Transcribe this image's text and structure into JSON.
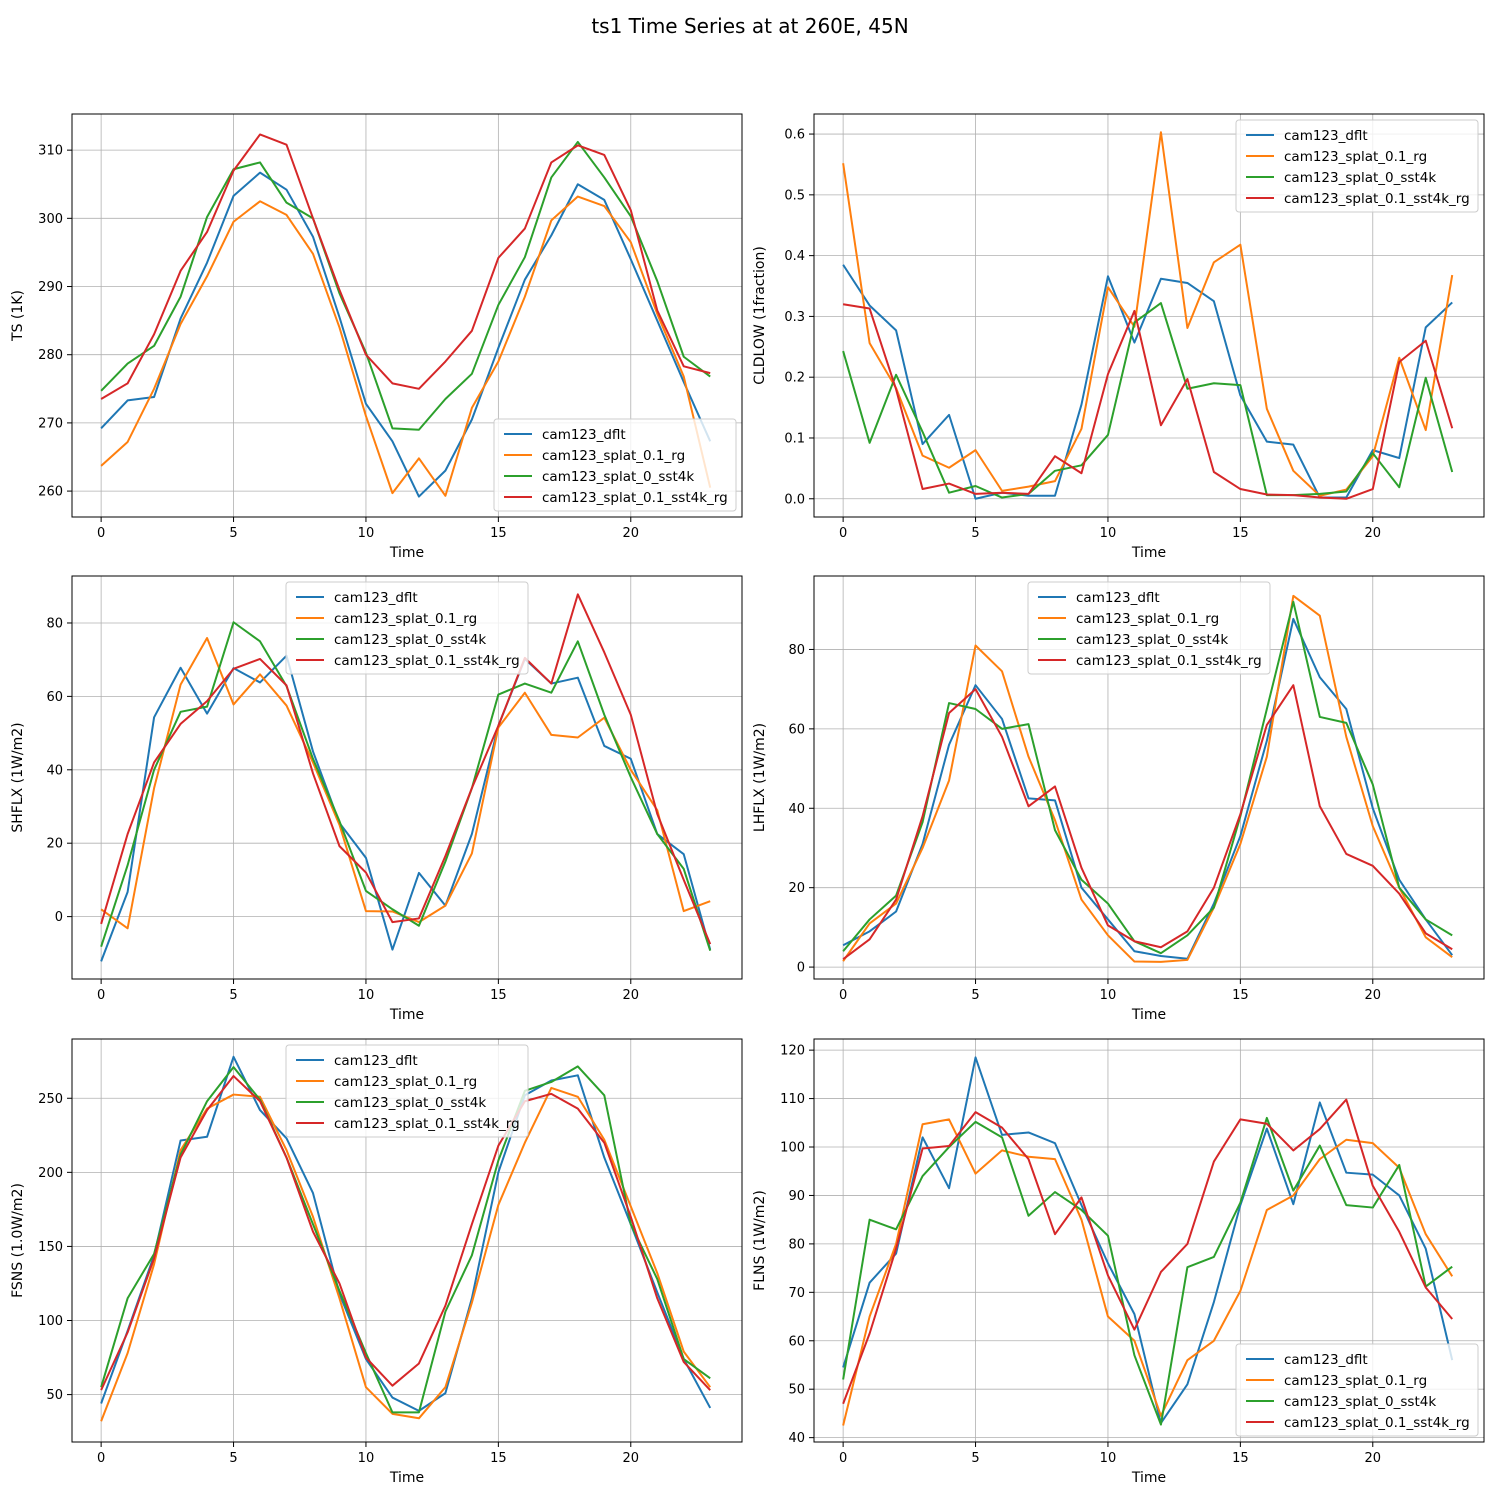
{
  "figure_title": "ts1 Time Series at at 260E, 45N",
  "colors": {
    "cam123_dflt": "#1f77b4",
    "cam123_splat_0.1_rg": "#ff7f0e",
    "cam123_splat_0_sst4k": "#2ca02c",
    "cam123_splat_0.1_sst4k_rg": "#d62728"
  },
  "chart_data": [
    {
      "type": "line",
      "title": "",
      "xlabel": "Time",
      "ylabel": "TS (1K)",
      "xlim": [
        -1.1,
        24.2
      ],
      "ylim": [
        256.2,
        315.3
      ],
      "xticks": [
        0,
        5,
        10,
        15,
        20
      ],
      "yticks": [
        260,
        270,
        280,
        290,
        300,
        310
      ],
      "grid": true,
      "legend_loc": "lower-right",
      "x": [
        0,
        1,
        2,
        3,
        4,
        5,
        6,
        7,
        8,
        9,
        10,
        11,
        12,
        13,
        14,
        15,
        16,
        17,
        18,
        19,
        20,
        21,
        22,
        23
      ],
      "series": [
        {
          "name": "cam123_dflt",
          "values": [
            269.2,
            273.3,
            273.8,
            285.3,
            293.5,
            303.3,
            306.7,
            304.2,
            297.3,
            285.5,
            272.8,
            267.3,
            259.2,
            263.0,
            270.5,
            281.0,
            291.0,
            297.5,
            305.0,
            302.7,
            294.0,
            285.0,
            276.0,
            267.3
          ]
        },
        {
          "name": "cam123_splat_0.1_rg",
          "values": [
            263.7,
            267.2,
            275.0,
            284.5,
            291.5,
            299.5,
            302.5,
            300.5,
            294.8,
            284.0,
            271.0,
            259.7,
            264.8,
            259.3,
            272.2,
            279.0,
            288.5,
            299.7,
            303.2,
            301.8,
            296.5,
            286.0,
            276.8,
            260.5
          ]
        },
        {
          "name": "cam123_splat_0_sst4k",
          "values": [
            274.7,
            278.7,
            281.3,
            288.5,
            300.2,
            307.2,
            308.2,
            302.3,
            300.0,
            289.0,
            280.3,
            269.2,
            269.0,
            273.5,
            277.2,
            287.3,
            294.3,
            306.0,
            311.2,
            306.0,
            300.3,
            290.8,
            279.7,
            276.8
          ]
        },
        {
          "name": "cam123_splat_0.1_sst4k_rg",
          "values": [
            273.5,
            275.8,
            283.0,
            292.3,
            298.0,
            307.0,
            312.3,
            310.8,
            300.0,
            289.5,
            280.0,
            275.8,
            275.0,
            279.0,
            283.5,
            294.2,
            298.5,
            308.2,
            310.7,
            309.3,
            301.2,
            286.5,
            278.3,
            277.3
          ]
        }
      ]
    },
    {
      "type": "line",
      "title": "",
      "xlabel": "Time",
      "ylabel": "CLDLOW (1fraction)",
      "xlim": [
        -1.1,
        24.2
      ],
      "ylim": [
        -0.03,
        0.633
      ],
      "xticks": [
        0,
        5,
        10,
        15,
        20
      ],
      "yticks": [
        0.0,
        0.1,
        0.2,
        0.3,
        0.4,
        0.5,
        0.6
      ],
      "grid": true,
      "legend_loc": "upper-right",
      "x": [
        0,
        1,
        2,
        3,
        4,
        5,
        6,
        7,
        8,
        9,
        10,
        11,
        12,
        13,
        14,
        15,
        16,
        17,
        18,
        19,
        20,
        21,
        22,
        23
      ],
      "series": [
        {
          "name": "cam123_dflt",
          "values": [
            0.385,
            0.318,
            0.277,
            0.09,
            0.138,
            0.0,
            0.01,
            0.005,
            0.005,
            0.155,
            0.366,
            0.257,
            0.362,
            0.355,
            0.325,
            0.17,
            0.094,
            0.089,
            0.002,
            0.002,
            0.08,
            0.067,
            0.282,
            0.323
          ]
        },
        {
          "name": "cam123_splat_0.1_rg",
          "values": [
            0.552,
            0.256,
            0.182,
            0.071,
            0.051,
            0.08,
            0.013,
            0.02,
            0.029,
            0.115,
            0.348,
            0.283,
            0.603,
            0.281,
            0.389,
            0.418,
            0.148,
            0.046,
            0.005,
            0.015,
            0.07,
            0.232,
            0.113,
            0.368
          ]
        },
        {
          "name": "cam123_splat_0_sst4k",
          "values": [
            0.243,
            0.092,
            0.204,
            0.11,
            0.01,
            0.021,
            0.002,
            0.008,
            0.046,
            0.055,
            0.105,
            0.29,
            0.322,
            0.181,
            0.19,
            0.187,
            0.006,
            0.006,
            0.008,
            0.012,
            0.075,
            0.019,
            0.199,
            0.044
          ]
        },
        {
          "name": "cam123_splat_0.1_sst4k_rg",
          "values": [
            0.32,
            0.313,
            0.18,
            0.016,
            0.025,
            0.008,
            0.01,
            0.008,
            0.07,
            0.042,
            0.205,
            0.309,
            0.121,
            0.197,
            0.044,
            0.016,
            0.007,
            0.006,
            0.002,
            0.0,
            0.016,
            0.225,
            0.26,
            0.116
          ]
        }
      ]
    },
    {
      "type": "line",
      "title": "",
      "xlabel": "Time",
      "ylabel": "SHFLX (1W/m2)",
      "xlim": [
        -1.1,
        24.2
      ],
      "ylim": [
        -17,
        92.8
      ],
      "xticks": [
        0,
        5,
        10,
        15,
        20
      ],
      "yticks": [
        0,
        20,
        40,
        60,
        80
      ],
      "grid": true,
      "legend_loc": "upper-center",
      "x": [
        0,
        1,
        2,
        3,
        4,
        5,
        6,
        7,
        8,
        9,
        10,
        11,
        12,
        13,
        14,
        15,
        16,
        17,
        18,
        19,
        20,
        21,
        22,
        23
      ],
      "series": [
        {
          "name": "cam123_dflt",
          "values": [
            -12.2,
            6.7,
            54.3,
            67.8,
            55.3,
            67.7,
            63.8,
            71.1,
            45.0,
            25.5,
            16.0,
            -9.0,
            11.9,
            3.0,
            22.5,
            52.0,
            70.2,
            63.5,
            65.1,
            46.5,
            43.0,
            22.5,
            17.0,
            -9.0
          ]
        },
        {
          "name": "cam123_splat_0.1_rg",
          "values": [
            2.0,
            -3.2,
            35.0,
            63.2,
            75.9,
            57.8,
            66.0,
            57.5,
            42.0,
            25.0,
            1.5,
            1.4,
            -1.5,
            3.0,
            17.2,
            51.5,
            61.0,
            49.5,
            48.8,
            54.2,
            40.0,
            29.0,
            1.5,
            4.2
          ]
        },
        {
          "name": "cam123_splat_0_sst4k",
          "values": [
            -8.2,
            14.0,
            40.0,
            55.8,
            57.2,
            80.2,
            75.0,
            62.8,
            43.0,
            26.0,
            7.0,
            2.0,
            -2.5,
            15.0,
            35.0,
            60.5,
            63.5,
            61.0,
            75.0,
            55.0,
            38.0,
            22.5,
            13.0,
            -9.3
          ]
        },
        {
          "name": "cam123_splat_0.1_sst4k_rg",
          "values": [
            -2.0,
            22.5,
            42.0,
            52.5,
            58.7,
            67.5,
            70.2,
            63.0,
            39.0,
            19.2,
            12.0,
            -1.5,
            -0.5,
            16.5,
            35.0,
            52.0,
            70.5,
            63.5,
            87.8,
            72.0,
            55.0,
            28.0,
            10.0,
            -7.5
          ]
        }
      ]
    },
    {
      "type": "line",
      "title": "",
      "xlabel": "Time",
      "ylabel": "LHFLX (1W/m2)",
      "xlim": [
        -1.1,
        24.2
      ],
      "ylim": [
        -3,
        98.5
      ],
      "xticks": [
        0,
        5,
        10,
        15,
        20
      ],
      "yticks": [
        0,
        20,
        40,
        60,
        80
      ],
      "grid": true,
      "legend_loc": "upper-center",
      "x": [
        0,
        1,
        2,
        3,
        4,
        5,
        6,
        7,
        8,
        9,
        10,
        11,
        12,
        13,
        14,
        15,
        16,
        17,
        18,
        19,
        20,
        21,
        22,
        23
      ],
      "series": [
        {
          "name": "cam123_dflt",
          "values": [
            5.5,
            9.0,
            14.0,
            31.0,
            56.0,
            71.0,
            62.5,
            42.5,
            42.0,
            20.0,
            12.0,
            4.0,
            2.8,
            2.1,
            16.0,
            33.0,
            57.0,
            87.7,
            73.0,
            65.0,
            40.0,
            22.0,
            12.0,
            3.0
          ]
        },
        {
          "name": "cam123_splat_0.1_rg",
          "values": [
            1.5,
            11.0,
            16.0,
            30.0,
            47.0,
            81.0,
            74.5,
            53.0,
            37.0,
            17.0,
            8.0,
            1.4,
            1.3,
            1.8,
            15.0,
            31.0,
            53.0,
            93.5,
            88.5,
            58.0,
            35.5,
            20.0,
            7.5,
            2.5
          ]
        },
        {
          "name": "cam123_splat_0_sst4k",
          "values": [
            4.0,
            12.0,
            18.0,
            36.5,
            66.5,
            65.0,
            60.0,
            61.2,
            34.5,
            22.0,
            16.0,
            6.5,
            3.5,
            8.0,
            15.0,
            38.0,
            65.0,
            92.0,
            63.0,
            61.5,
            46.0,
            20.0,
            12.0,
            8.0
          ]
        },
        {
          "name": "cam123_splat_0.1_sst4k_rg",
          "values": [
            2.0,
            7.0,
            17.0,
            38.0,
            64.0,
            70.0,
            58.0,
            40.5,
            45.5,
            25.0,
            10.5,
            6.5,
            5.0,
            9.0,
            20.0,
            38.5,
            61.0,
            71.0,
            40.5,
            28.5,
            25.5,
            18.5,
            8.5,
            4.5
          ]
        }
      ]
    },
    {
      "type": "line",
      "title": "",
      "xlabel": "Time",
      "ylabel": "FSNS (1.0W/m2)",
      "xlim": [
        -1.1,
        24.2
      ],
      "ylim": [
        18,
        290
      ],
      "xticks": [
        0,
        5,
        10,
        15,
        20
      ],
      "yticks": [
        50,
        100,
        150,
        200,
        250
      ],
      "grid": true,
      "legend_loc": "upper-center",
      "x": [
        0,
        1,
        2,
        3,
        4,
        5,
        6,
        7,
        8,
        9,
        10,
        11,
        12,
        13,
        14,
        15,
        16,
        17,
        18,
        19,
        20,
        21,
        22,
        23
      ],
      "series": [
        {
          "name": "cam123_dflt",
          "values": [
            44.0,
            93.0,
            144.0,
            221.5,
            224.0,
            278.0,
            242.0,
            223.0,
            186.0,
            118.0,
            74.0,
            48.0,
            39.0,
            51.0,
            115.0,
            200.0,
            252.0,
            262.0,
            265.5,
            210.0,
            165.0,
            119.0,
            74.0,
            41.0
          ]
        },
        {
          "name": "cam123_splat_0.1_rg",
          "values": [
            32.0,
            78.0,
            138.0,
            215.0,
            243.0,
            252.5,
            251.0,
            215.0,
            170.0,
            115.0,
            55.0,
            37.0,
            34.0,
            55.0,
            112.0,
            178.0,
            220.0,
            257.0,
            251.0,
            222.0,
            177.0,
            132.0,
            79.0,
            55.0
          ]
        },
        {
          "name": "cam123_splat_0_sst4k",
          "values": [
            55.0,
            115.0,
            145.0,
            212.0,
            248.0,
            271.0,
            249.0,
            210.0,
            165.0,
            120.0,
            78.0,
            38.0,
            38.0,
            106.0,
            144.0,
            208.0,
            255.0,
            261.0,
            271.5,
            252.0,
            165.0,
            128.0,
            74.0,
            61.0
          ]
        },
        {
          "name": "cam123_splat_0.1_sst4k_rg",
          "values": [
            53.0,
            92.0,
            142.0,
            210.0,
            242.0,
            265.0,
            248.0,
            210.0,
            160.0,
            125.0,
            75.0,
            56.0,
            71.0,
            110.0,
            165.0,
            218.0,
            248.0,
            253.0,
            243.0,
            220.0,
            170.0,
            115.0,
            72.0,
            53.0
          ]
        }
      ]
    },
    {
      "type": "line",
      "title": "",
      "xlabel": "Time",
      "ylabel": "FLNS (1W/m2)",
      "xlim": [
        -1.1,
        24.2
      ],
      "ylim": [
        39.1,
        122.3
      ],
      "xticks": [
        0,
        5,
        10,
        15,
        20
      ],
      "yticks": [
        40,
        50,
        60,
        70,
        80,
        90,
        100,
        110,
        120
      ],
      "grid": true,
      "legend_loc": "lower-right",
      "x": [
        0,
        1,
        2,
        3,
        4,
        5,
        6,
        7,
        8,
        9,
        10,
        11,
        12,
        13,
        14,
        15,
        16,
        17,
        18,
        19,
        20,
        21,
        22,
        23
      ],
      "series": [
        {
          "name": "cam123_dflt",
          "values": [
            54.5,
            72.0,
            78.0,
            102.0,
            91.5,
            118.5,
            102.5,
            103.0,
            100.8,
            88.0,
            76.0,
            65.5,
            43.0,
            51.0,
            68.0,
            88.0,
            103.8,
            88.2,
            109.2,
            94.7,
            94.3,
            90.0,
            79.0,
            56.0
          ]
        },
        {
          "name": "cam123_splat_0.1_rg",
          "values": [
            42.5,
            65.0,
            80.0,
            104.7,
            105.7,
            94.5,
            99.3,
            98.0,
            97.5,
            85.0,
            65.0,
            60.0,
            44.5,
            56.0,
            60.0,
            70.3,
            87.0,
            90.0,
            97.5,
            101.5,
            100.8,
            95.7,
            82.0,
            73.3
          ]
        },
        {
          "name": "cam123_splat_0_sst4k",
          "values": [
            52.0,
            85.0,
            83.0,
            94.0,
            100.0,
            105.2,
            102.0,
            85.8,
            90.7,
            87.0,
            81.7,
            57.0,
            42.7,
            75.2,
            77.3,
            88.5,
            106.0,
            91.0,
            100.3,
            88.0,
            87.5,
            96.3,
            71.2,
            75.3
          ]
        },
        {
          "name": "cam123_splat_0.1_sst4k_rg",
          "values": [
            47.0,
            61.5,
            79.0,
            99.7,
            100.2,
            107.2,
            104.0,
            97.5,
            82.0,
            89.6,
            73.5,
            62.3,
            74.2,
            80.0,
            97.0,
            105.7,
            104.8,
            99.3,
            103.7,
            109.8,
            92.0,
            82.5,
            71.0,
            64.5
          ]
        }
      ]
    }
  ]
}
